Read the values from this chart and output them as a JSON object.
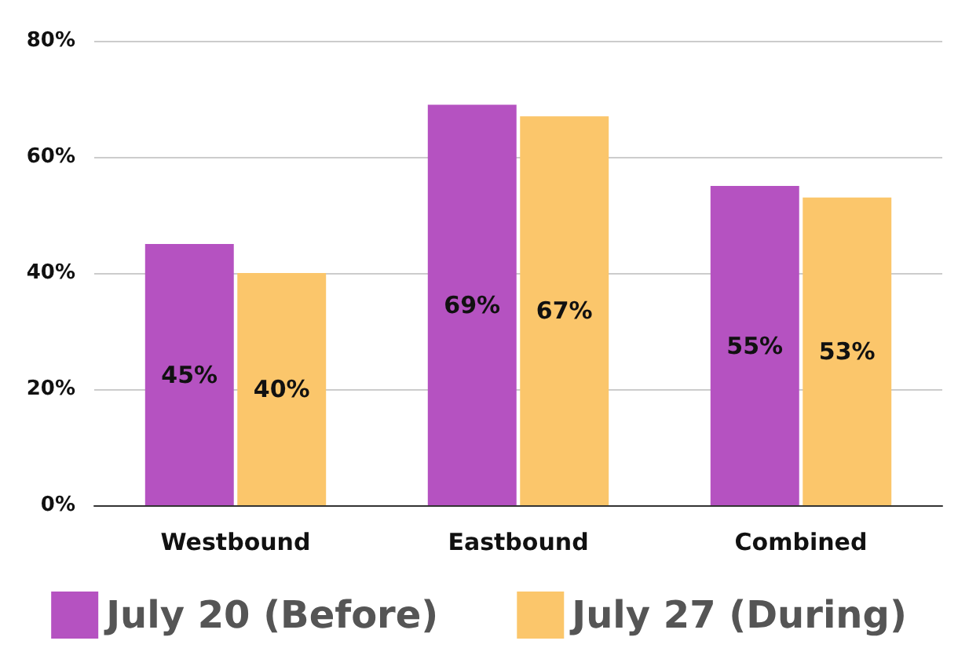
{
  "chart_data": {
    "type": "bar",
    "categories": [
      "Westbound",
      "Eastbound",
      "Combined"
    ],
    "series": [
      {
        "name": "July 20 (Before)",
        "color": "#b552c1",
        "values": [
          45,
          69,
          55
        ],
        "value_labels": [
          "45%",
          "69%",
          "55%"
        ]
      },
      {
        "name": "July 27 (During)",
        "color": "#fbc66b",
        "values": [
          40,
          67,
          53
        ],
        "value_labels": [
          "40%",
          "67%",
          "53%"
        ]
      }
    ],
    "ylim": [
      0,
      80
    ],
    "yticks": [
      {
        "value": 0,
        "label": "0%"
      },
      {
        "value": 20,
        "label": "20%"
      },
      {
        "value": 40,
        "label": "40%"
      },
      {
        "value": 60,
        "label": "60%"
      },
      {
        "value": 80,
        "label": "80%"
      }
    ],
    "grid": "y",
    "legend": "bottom"
  }
}
